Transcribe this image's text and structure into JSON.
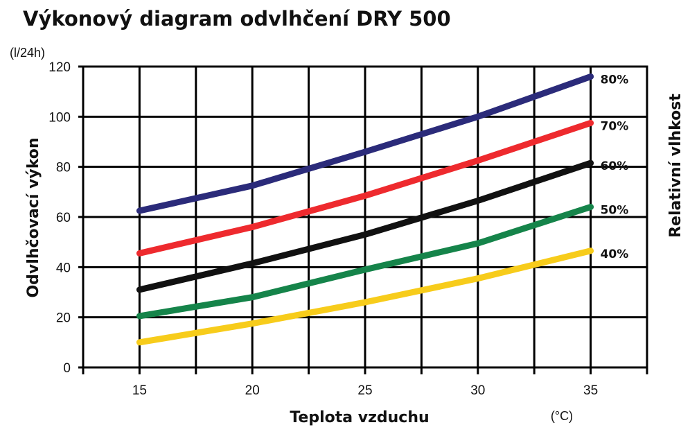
{
  "chart_data": {
    "type": "line",
    "title": "Výkonový diagram odvlhčení DRY 500",
    "ylabel": "Odvlhčovací výkon",
    "yunit": "(l/24h)",
    "xlabel": "Teplota vzduchu",
    "xunit": "(°C)",
    "right_label": "Relativní vlhkost",
    "x": [
      15,
      20,
      25,
      30,
      35
    ],
    "xlim": [
      12.5,
      37.5
    ],
    "ylim": [
      0,
      120
    ],
    "xticks": [
      "15",
      "20",
      "25",
      "30",
      "35"
    ],
    "yticks": [
      "0",
      "20",
      "40",
      "60",
      "80",
      "100",
      "120"
    ],
    "grid": true,
    "series": [
      {
        "name": "80%",
        "color": "#2b2b7a",
        "values": [
          62.5,
          72.5,
          86,
          100,
          116
        ]
      },
      {
        "name": "70%",
        "color": "#ee2a2e",
        "values": [
          45.5,
          56,
          68.5,
          82.5,
          97.5
        ]
      },
      {
        "name": "60%",
        "color": "#111111",
        "values": [
          31,
          41.5,
          53,
          66.5,
          81.5
        ]
      },
      {
        "name": "50%",
        "color": "#15844a",
        "values": [
          20.5,
          28,
          39,
          49.5,
          64
        ]
      },
      {
        "name": "40%",
        "color": "#f7cc1b",
        "values": [
          10,
          17.5,
          26,
          35.5,
          46.5
        ]
      }
    ]
  }
}
